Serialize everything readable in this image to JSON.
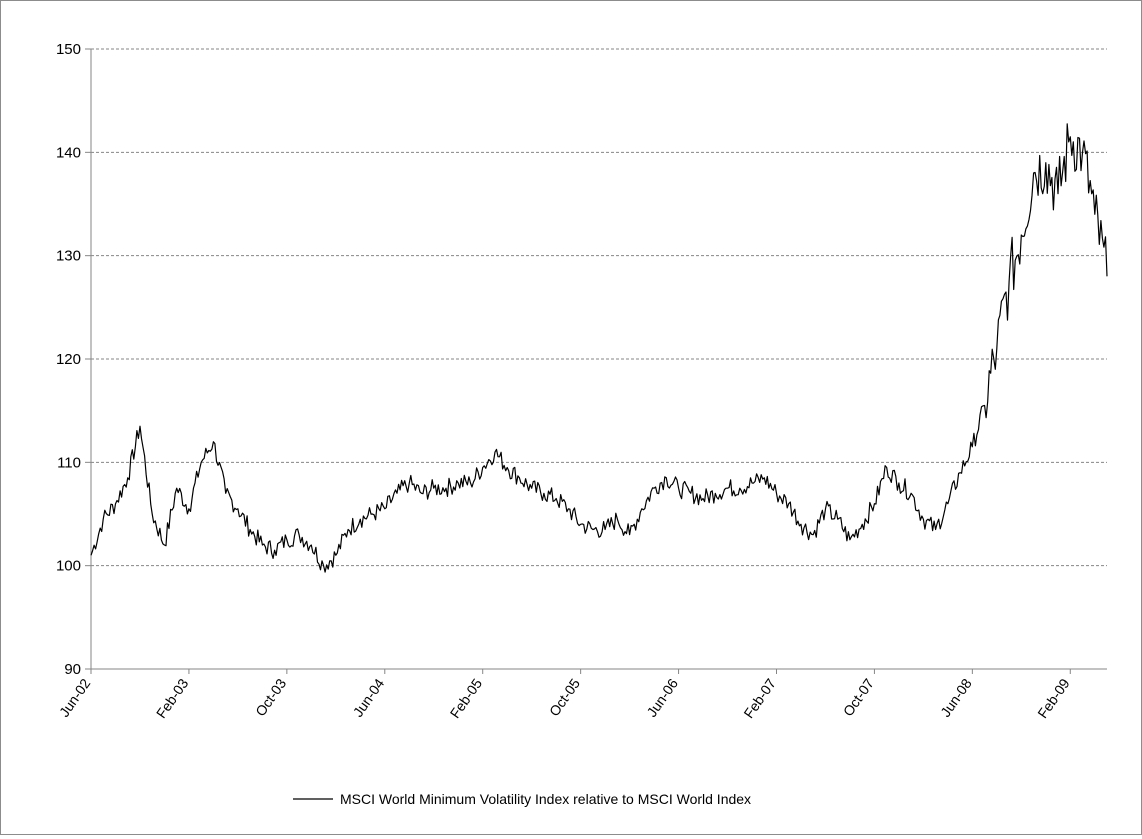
{
  "chart_data": {
    "type": "line",
    "title": "",
    "xlabel": "",
    "ylabel": "",
    "ylim": [
      90,
      150
    ],
    "yticks": [
      90,
      100,
      110,
      120,
      130,
      140,
      150
    ],
    "xtick_labels": [
      "Jun-02",
      "Feb-03",
      "Oct-03",
      "Jun-04",
      "Feb-05",
      "Oct-05",
      "Jun-06",
      "Feb-07",
      "Oct-07",
      "Jun-08",
      "Feb-09"
    ],
    "x_range": [
      "2002-06",
      "2009-05"
    ],
    "grid": "horizontal-dashed",
    "legend_position": "bottom",
    "series": [
      {
        "name": "MSCI World Minimum Volatility  Index relative to MSCI World Index",
        "color": "#000000",
        "x": [
          "2002-06",
          "2002-07",
          "2002-08",
          "2002-09",
          "2002-10",
          "2002-11",
          "2002-12",
          "2003-01",
          "2003-02",
          "2003-03",
          "2003-04",
          "2003-05",
          "2003-06",
          "2003-07",
          "2003-08",
          "2003-09",
          "2003-10",
          "2003-11",
          "2003-12",
          "2004-01",
          "2004-02",
          "2004-03",
          "2004-04",
          "2004-05",
          "2004-06",
          "2004-07",
          "2004-08",
          "2004-09",
          "2004-10",
          "2004-11",
          "2004-12",
          "2005-01",
          "2005-02",
          "2005-03",
          "2005-04",
          "2005-05",
          "2005-06",
          "2005-07",
          "2005-08",
          "2005-09",
          "2005-10",
          "2005-11",
          "2005-12",
          "2006-01",
          "2006-02",
          "2006-03",
          "2006-04",
          "2006-05",
          "2006-06",
          "2006-07",
          "2006-08",
          "2006-09",
          "2006-10",
          "2006-11",
          "2006-12",
          "2007-01",
          "2007-02",
          "2007-03",
          "2007-04",
          "2007-05",
          "2007-06",
          "2007-07",
          "2007-08",
          "2007-09",
          "2007-10",
          "2007-11",
          "2007-12",
          "2008-01",
          "2008-02",
          "2008-03",
          "2008-04",
          "2008-05",
          "2008-06",
          "2008-07",
          "2008-08",
          "2008-09",
          "2008-10",
          "2008-11",
          "2008-12",
          "2009-01",
          "2009-02",
          "2009-03",
          "2009-04",
          "2009-05"
        ],
        "values": [
          101.0,
          104.5,
          106.0,
          108.5,
          113.5,
          105.0,
          102.0,
          107.5,
          105.5,
          110.0,
          112.0,
          107.0,
          105.5,
          103.5,
          102.0,
          101.5,
          102.5,
          103.0,
          102.0,
          100.0,
          101.0,
          103.5,
          104.5,
          105.0,
          105.5,
          107.0,
          108.0,
          107.0,
          107.5,
          107.5,
          108.0,
          108.0,
          109.5,
          111.0,
          109.5,
          108.5,
          107.5,
          107.0,
          106.5,
          105.5,
          104.0,
          103.5,
          103.5,
          104.5,
          103.0,
          105.5,
          107.5,
          108.5,
          107.5,
          107.0,
          106.5,
          107.0,
          107.5,
          107.5,
          108.0,
          108.5,
          107.0,
          106.0,
          104.0,
          103.0,
          105.5,
          104.5,
          102.5,
          104.0,
          106.0,
          109.5,
          108.0,
          107.0,
          104.5,
          103.5,
          106.0,
          109.0,
          111.5,
          115.5,
          121.0,
          127.5,
          132.0,
          138.0,
          139.0,
          136.0,
          141.5,
          140.0,
          134.0,
          128.0
        ]
      }
    ]
  }
}
